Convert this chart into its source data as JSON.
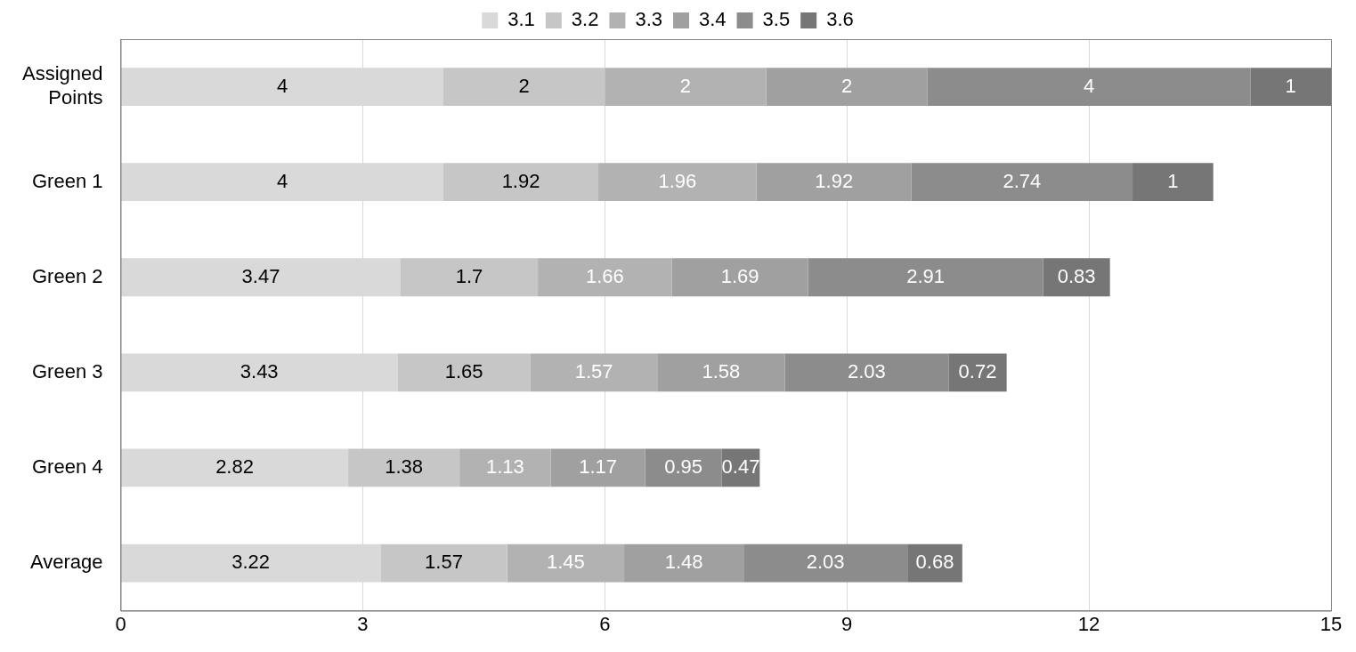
{
  "chart_data": {
    "type": "bar",
    "orientation": "horizontal",
    "stacked": true,
    "data_labels": true,
    "grid": "x",
    "legend": "top",
    "categories": [
      "Assigned Points",
      "Green 1",
      "Green 2",
      "Green 3",
      "Green 4",
      "Average"
    ],
    "xlim": [
      0,
      15
    ],
    "xticks": [
      0,
      3,
      6,
      9,
      12,
      15
    ],
    "series": [
      {
        "name": "3.1",
        "color": "#d9d9d9",
        "values": [
          4,
          4,
          3.47,
          3.43,
          2.82,
          3.22
        ]
      },
      {
        "name": "3.2",
        "color": "#c6c6c6",
        "values": [
          2,
          1.92,
          1.7,
          1.65,
          1.38,
          1.57
        ]
      },
      {
        "name": "3.3",
        "color": "#b2b2b2",
        "values": [
          2,
          1.96,
          1.66,
          1.57,
          1.13,
          1.45
        ]
      },
      {
        "name": "3.4",
        "color": "#a0a0a0",
        "values": [
          2,
          1.92,
          1.69,
          1.58,
          1.17,
          1.48
        ]
      },
      {
        "name": "3.5",
        "color": "#8c8c8c",
        "values": [
          4,
          2.74,
          2.91,
          2.03,
          0.95,
          2.03
        ]
      },
      {
        "name": "3.6",
        "color": "#767676",
        "values": [
          1,
          1,
          0.83,
          0.72,
          0.47,
          0.68
        ]
      }
    ]
  }
}
